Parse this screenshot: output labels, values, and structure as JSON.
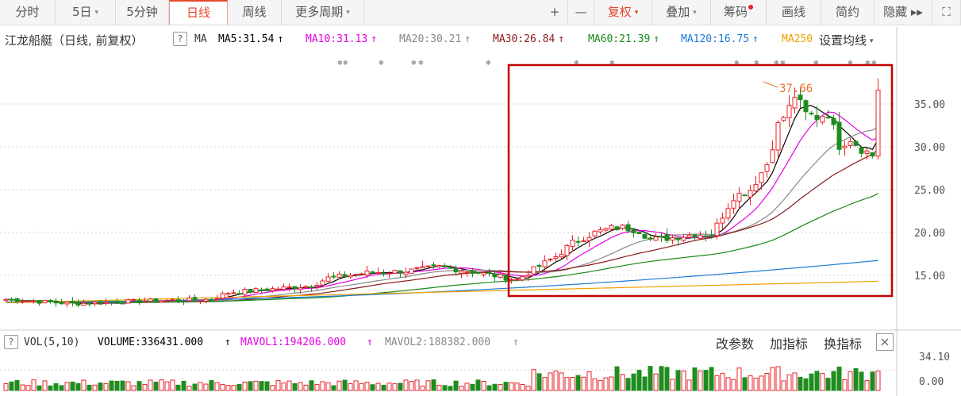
{
  "toolbar": {
    "left": [
      {
        "label": "分时"
      },
      {
        "label": "5日",
        "caret": "▾"
      },
      {
        "label": "5分钟"
      },
      {
        "label": "日线",
        "active": true
      },
      {
        "label": "周线"
      },
      {
        "label": "更多周期",
        "caret": "▾"
      }
    ],
    "right": [
      {
        "label": "+"
      },
      {
        "label": "—"
      },
      {
        "label": "复权",
        "caret": "▾",
        "hl": true
      },
      {
        "label": "叠加",
        "caret": "▾"
      },
      {
        "label": "筹码",
        "dot": true
      },
      {
        "label": "画线"
      },
      {
        "label": "简约"
      },
      {
        "label": "隐藏 ▸▸"
      },
      {
        "label": "⛶"
      }
    ]
  },
  "info": {
    "stock_title": "江龙船艇（日线, 前复权）",
    "help": "?",
    "ma_label": "MA",
    "items": [
      {
        "text": "MA5:31.54",
        "color": "#000000",
        "arrow": "↑"
      },
      {
        "text": "MA10:31.13",
        "color": "#e600e6",
        "arrow": "↑"
      },
      {
        "text": "MA20:30.21",
        "color": "#888888",
        "arrow": "↑"
      },
      {
        "text": "MA30:26.84",
        "color": "#8b1a1a",
        "arrow": "↑"
      },
      {
        "text": "MA60:21.39",
        "color": "#1a8a1a",
        "arrow": "↑"
      },
      {
        "text": "MA120:16.75",
        "color": "#1a7ad6",
        "arrow": "↑"
      },
      {
        "text": "MA250",
        "color": "#f0a000",
        "arrow": ""
      }
    ],
    "set_ma": "设置均线"
  },
  "price_axis": {
    "labels": [
      "35.00",
      "30.00",
      "25.00",
      "20.00",
      "15.00"
    ],
    "values": [
      35,
      30,
      25,
      20,
      15
    ]
  },
  "peak": {
    "label": "37.66"
  },
  "volume": {
    "help": "?",
    "vol_label": "VOL(5,10)",
    "volume_text": "VOLUME:336431.000",
    "mavol1": "MAVOL1:194206.000",
    "mavol2": "MAVOL2:188382.000",
    "buttons": [
      "改参数",
      "加指标",
      "换指标"
    ],
    "close": "×",
    "axis_labels": [
      "34.10",
      "0.00"
    ]
  },
  "colors": {
    "up": "#e8212a",
    "down": "#1e8c1e",
    "highlight_box": "#c00000",
    "ma5": "#000000",
    "ma10": "#e600e6",
    "ma20": "#888888",
    "ma30": "#8b1a1a",
    "ma60": "#1a8a1a",
    "ma120": "#1a7ad6",
    "ma250": "#f0a000"
  }
}
